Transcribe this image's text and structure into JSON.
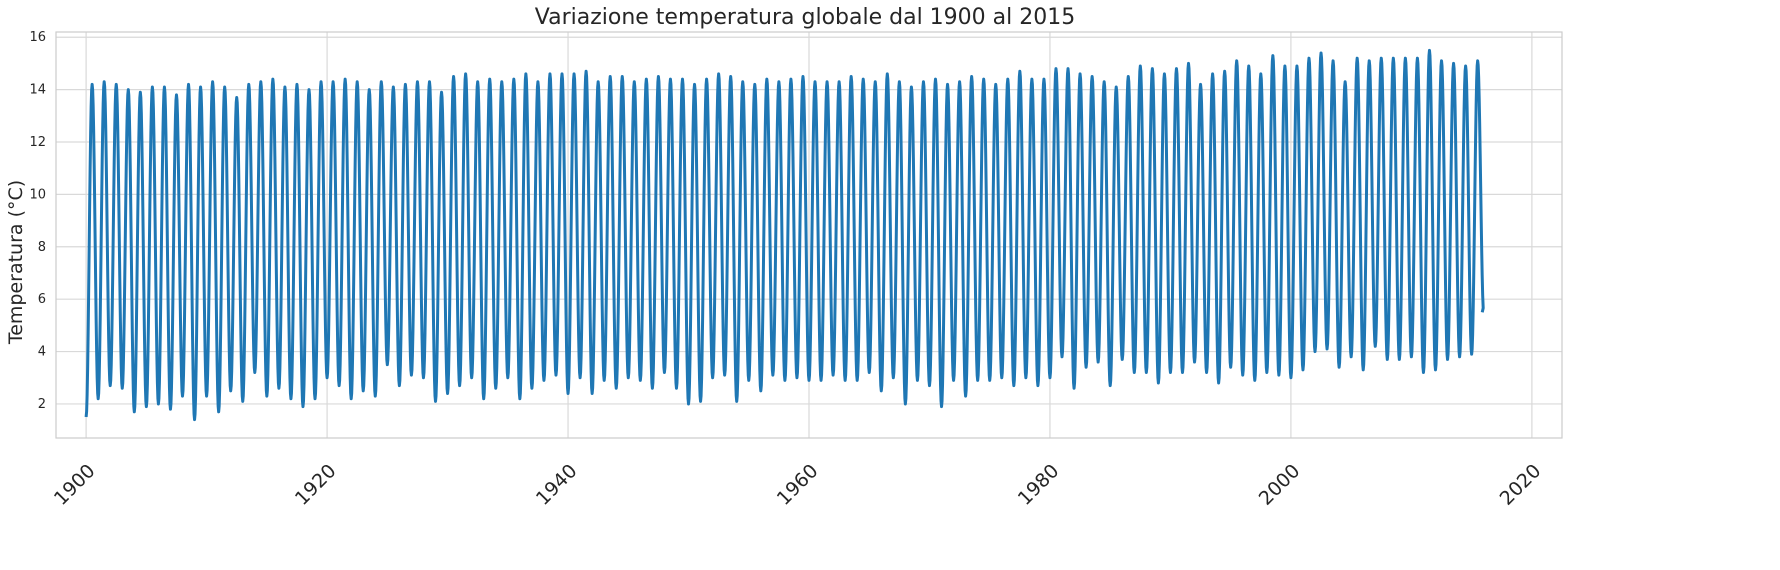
{
  "chart_data": {
    "type": "line",
    "title": "Variazione temperatura globale dal 1900 al 2015",
    "xlabel": "",
    "ylabel": "Temperatura (°C)",
    "xlim": [
      1897.5,
      2022.5
    ],
    "ylim": [
      0.7,
      16.2
    ],
    "x_ticks": [
      1900,
      1920,
      1940,
      1960,
      1980,
      2000,
      2020
    ],
    "x_tick_labels": [
      "1900",
      "1920",
      "1940",
      "1960",
      "1980",
      "2000",
      "2020"
    ],
    "y_ticks": [
      2,
      4,
      6,
      8,
      10,
      12,
      14,
      16
    ],
    "y_tick_labels": [
      "2",
      "4",
      "6",
      "8",
      "10",
      "12",
      "14",
      "16"
    ],
    "grid": true,
    "line_color": "#1f77b4",
    "series": [
      {
        "x_start": 1900,
        "x_end": 2015,
        "yearly_peaks": [
          14.2,
          14.3,
          14.2,
          14.0,
          13.9,
          14.1,
          14.1,
          13.8,
          14.2,
          14.1,
          14.3,
          14.1,
          13.7,
          14.2,
          14.3,
          14.4,
          14.1,
          14.2,
          14.0,
          14.3,
          14.3,
          14.4,
          14.3,
          14.0,
          14.3,
          14.1,
          14.2,
          14.3,
          14.3,
          13.9,
          14.5,
          14.6,
          14.3,
          14.4,
          14.3,
          14.4,
          14.6,
          14.3,
          14.6,
          14.6,
          14.6,
          14.7,
          14.3,
          14.5,
          14.5,
          14.3,
          14.4,
          14.5,
          14.4,
          14.4,
          14.2,
          14.4,
          14.6,
          14.5,
          14.3,
          14.2,
          14.4,
          14.3,
          14.4,
          14.5,
          14.3,
          14.3,
          14.3,
          14.5,
          14.4,
          14.3,
          14.6,
          14.3,
          14.1,
          14.3,
          14.4,
          14.2,
          14.3,
          14.5,
          14.4,
          14.2,
          14.4,
          14.7,
          14.4,
          14.4,
          14.8,
          14.8,
          14.6,
          14.5,
          14.3,
          14.1,
          14.5,
          14.9,
          14.8,
          14.6,
          14.8,
          15.0,
          14.2,
          14.6,
          14.7,
          15.1,
          14.9,
          14.6,
          15.3,
          14.9,
          14.9,
          15.2,
          15.4,
          15.1,
          14.3,
          15.2,
          15.1,
          15.2,
          15.2,
          15.2,
          15.2,
          15.5,
          15.1,
          15.0,
          14.9,
          15.1
        ],
        "yearly_troughs": [
          1.5,
          2.2,
          2.7,
          2.6,
          1.7,
          1.9,
          2.0,
          1.8,
          2.3,
          1.4,
          2.3,
          1.7,
          2.5,
          2.1,
          3.2,
          2.3,
          2.6,
          2.2,
          1.9,
          2.2,
          3.0,
          2.7,
          2.2,
          2.5,
          2.3,
          3.5,
          2.7,
          3.1,
          3.0,
          2.1,
          2.4,
          2.7,
          3.0,
          2.2,
          2.6,
          3.0,
          2.2,
          2.6,
          2.9,
          3.1,
          2.4,
          3.0,
          2.4,
          2.9,
          2.6,
          3.0,
          2.9,
          2.6,
          3.2,
          2.6,
          2.0,
          2.1,
          3.0,
          3.1,
          2.1,
          2.9,
          2.5,
          3.1,
          2.9,
          3.0,
          2.9,
          2.9,
          3.1,
          2.9,
          2.9,
          3.2,
          2.5,
          3.0,
          2.0,
          2.9,
          2.7,
          1.9,
          2.9,
          2.3,
          2.9,
          2.9,
          3.0,
          2.7,
          3.0,
          2.7,
          3.0,
          3.8,
          2.6,
          3.4,
          3.6,
          2.7,
          3.7,
          3.2,
          3.2,
          2.8,
          3.2,
          3.2,
          3.6,
          3.2,
          2.8,
          3.4,
          3.1,
          2.9,
          3.2,
          3.1,
          3.0,
          3.3,
          4.0,
          4.1,
          3.4,
          3.8,
          3.3,
          4.2,
          3.7,
          3.7,
          3.8,
          3.2,
          3.3,
          3.7,
          3.8,
          3.9
        ],
        "final_value": 5.5
      }
    ]
  }
}
